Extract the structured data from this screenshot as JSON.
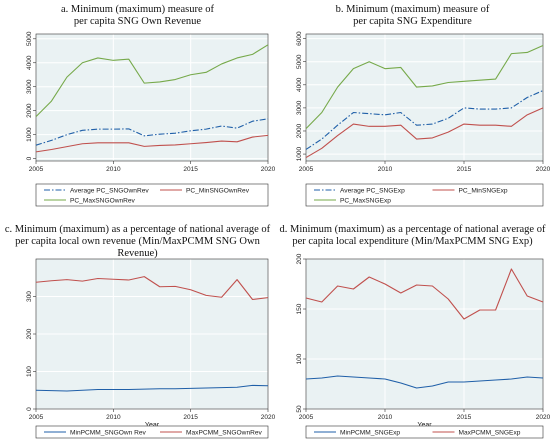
{
  "colors": {
    "plot_bg": "#EAF2F3",
    "grid": "#FFFFFF",
    "average": "#1F5FA8",
    "min": "#C0504D",
    "max": "#76A94A",
    "frame": "#333333"
  },
  "chart_data": [
    {
      "type": "line",
      "title": "a. Minimum (maximum) measure of",
      "subtitle": "per capita SNG Own Revenue",
      "xlabel": "",
      "ylabel": "",
      "xlim": [
        2005,
        2020
      ],
      "ylim": [
        -100,
        5200
      ],
      "xticks": [
        2005,
        2010,
        2015,
        2020
      ],
      "yticks": [
        0,
        1000,
        2000,
        3000,
        4000,
        5000
      ],
      "ytick_labels": [
        "0",
        "1000",
        "2000",
        "3000",
        "4000",
        "5000"
      ],
      "grid": true,
      "legend": "bottom",
      "x": [
        2005,
        2006,
        2007,
        2008,
        2009,
        2010,
        2011,
        2012,
        2013,
        2014,
        2015,
        2016,
        2017,
        2018,
        2019,
        2020
      ],
      "series": [
        {
          "name": "Average PC_SNGOwnRev",
          "style": "dashdot",
          "color_key": "average",
          "values": [
            560,
            760,
            1000,
            1180,
            1230,
            1230,
            1240,
            950,
            1020,
            1060,
            1160,
            1230,
            1360,
            1270,
            1560,
            1660
          ]
        },
        {
          "name": "PC_MinSNGOwnRev",
          "style": "solid",
          "color_key": "min",
          "values": [
            280,
            380,
            500,
            620,
            660,
            660,
            660,
            510,
            550,
            570,
            620,
            670,
            730,
            700,
            900,
            970
          ]
        },
        {
          "name": "PC_MaxSNGOwnRev",
          "style": "solid",
          "color_key": "max",
          "values": [
            1750,
            2400,
            3400,
            4000,
            4200,
            4100,
            4150,
            3150,
            3200,
            3300,
            3500,
            3600,
            3950,
            4200,
            4350,
            4750
          ]
        }
      ]
    },
    {
      "type": "line",
      "title": "b. Minimum (maximum) measure of",
      "subtitle": "per capita SNG Expenditure",
      "xlabel": "",
      "ylabel": "",
      "xlim": [
        2005,
        2020
      ],
      "ylim": [
        700,
        6200
      ],
      "xticks": [
        2005,
        2010,
        2015,
        2020
      ],
      "yticks": [
        1000,
        2000,
        3000,
        4000,
        5000,
        6000
      ],
      "ytick_labels": [
        "1000",
        "2000",
        "3000",
        "4000",
        "5000",
        "6000"
      ],
      "grid": true,
      "legend": "bottom",
      "x": [
        2005,
        2006,
        2007,
        2008,
        2009,
        2010,
        2011,
        2012,
        2013,
        2014,
        2015,
        2016,
        2017,
        2018,
        2019,
        2020
      ],
      "series": [
        {
          "name": "Average PC_SNGExp",
          "style": "dashdot",
          "color_key": "average",
          "values": [
            1200,
            1650,
            2250,
            2800,
            2750,
            2700,
            2800,
            2250,
            2300,
            2550,
            3000,
            2950,
            2950,
            3000,
            3450,
            3750
          ]
        },
        {
          "name": "PC_MinSNGExp",
          "style": "solid",
          "color_key": "min",
          "values": [
            850,
            1250,
            1800,
            2300,
            2200,
            2200,
            2250,
            1650,
            1700,
            1950,
            2300,
            2250,
            2250,
            2200,
            2700,
            3000
          ]
        },
        {
          "name": "PC_MaxSNGExp",
          "style": "solid",
          "color_key": "max",
          "values": [
            2100,
            2800,
            3900,
            4700,
            5000,
            4700,
            4750,
            3900,
            3950,
            4100,
            4150,
            4200,
            4250,
            5350,
            5400,
            5700
          ]
        }
      ]
    },
    {
      "type": "line",
      "title": "c. Minimum (maximum) as a percentage of national average of",
      "subtitle": "per capita local own revenue (Min/MaxPCMM SNG Own Revenue)",
      "xlabel": "Year",
      "ylabel": "",
      "xlim": [
        2005,
        2020
      ],
      "ylim": [
        0,
        400
      ],
      "xticks": [
        2005,
        2010,
        2015,
        2020
      ],
      "yticks": [
        0,
        100,
        200,
        300
      ],
      "ytick_labels": [
        "0",
        "100",
        "200",
        "300"
      ],
      "grid": true,
      "legend": "bottom",
      "x": [
        2005,
        2006,
        2007,
        2008,
        2009,
        2010,
        2011,
        2012,
        2013,
        2014,
        2015,
        2016,
        2017,
        2018,
        2019,
        2020
      ],
      "series": [
        {
          "name": "MinPCMM_SNGOwn Rev",
          "style": "solid",
          "color_key": "average",
          "values": [
            50,
            49,
            48,
            50,
            52,
            52,
            52,
            53,
            54,
            54,
            55,
            56,
            57,
            58,
            63,
            62
          ]
        },
        {
          "name": "MaxPCMM_SNGOwnRev",
          "style": "solid",
          "color_key": "min",
          "values": [
            338,
            342,
            345,
            341,
            348,
            346,
            344,
            353,
            326,
            327,
            318,
            303,
            298,
            345,
            292,
            297
          ]
        }
      ]
    },
    {
      "type": "line",
      "title": "d. Minimum (maximum) as a percentage of national average of",
      "subtitle": "per capita local expenditure (Min/MaxPCMM SNG Exp)",
      "xlabel": "Year",
      "ylabel": "",
      "xlim": [
        2005,
        2020
      ],
      "ylim": [
        50,
        200
      ],
      "xticks": [
        2005,
        2010,
        2015,
        2020
      ],
      "yticks": [
        50,
        100,
        150,
        200
      ],
      "ytick_labels": [
        "50",
        "100",
        "150",
        "200"
      ],
      "grid": true,
      "legend": "bottom",
      "x": [
        2005,
        2006,
        2007,
        2008,
        2009,
        2010,
        2011,
        2012,
        2013,
        2014,
        2015,
        2016,
        2017,
        2018,
        2019,
        2020
      ],
      "series": [
        {
          "name": "MinPCMM_SNGExp",
          "style": "solid",
          "color_key": "average",
          "values": [
            80,
            81,
            83,
            82,
            81,
            80,
            76,
            71,
            73,
            77,
            77,
            78,
            79,
            80,
            82,
            81
          ]
        },
        {
          "name": "MaxPCMM_SNGExp",
          "style": "solid",
          "color_key": "min",
          "values": [
            161,
            157,
            173,
            170,
            182,
            175,
            166,
            174,
            173,
            160,
            140,
            149,
            149,
            190,
            163,
            157
          ]
        }
      ]
    }
  ]
}
